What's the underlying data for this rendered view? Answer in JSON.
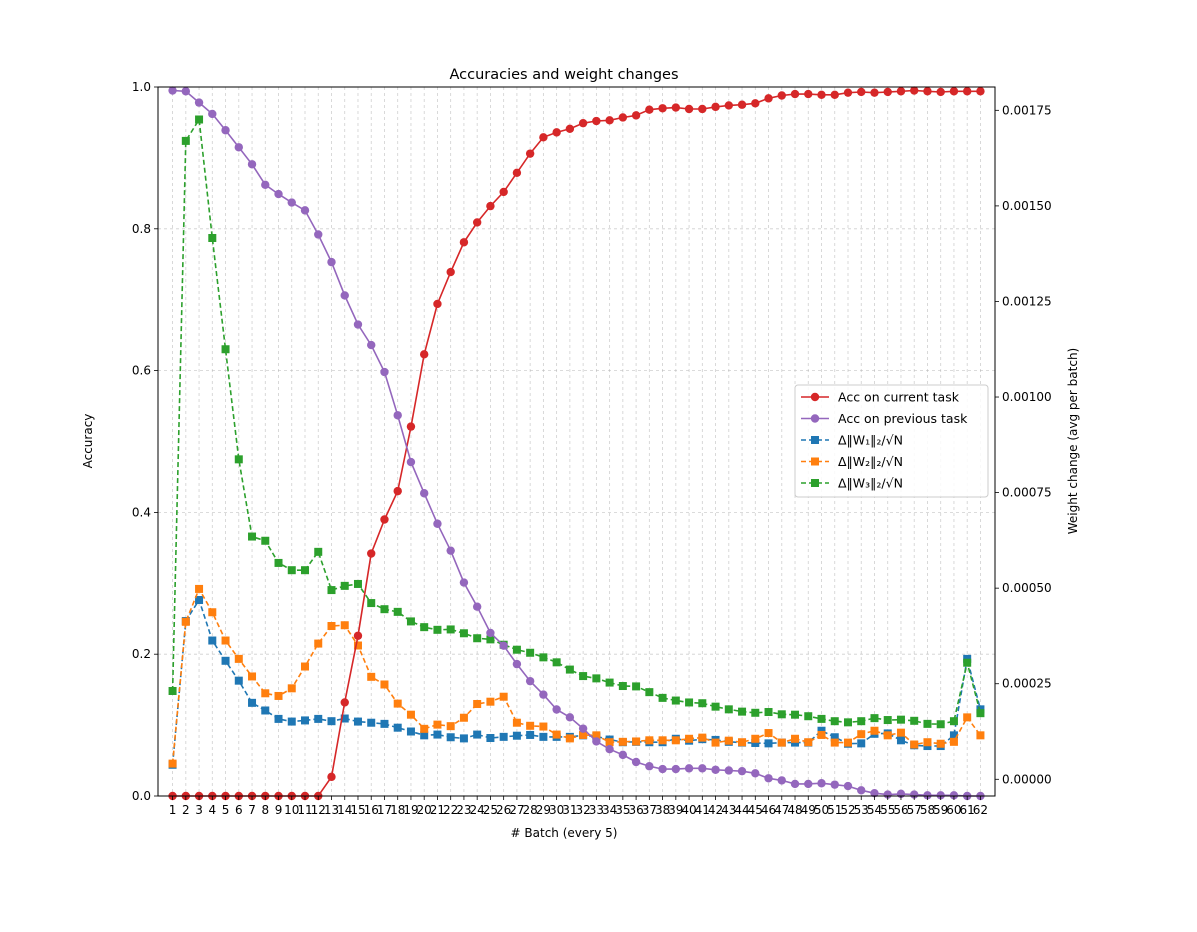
{
  "chart_data": {
    "type": "line",
    "title": "Accuracies and weight changes",
    "xlabel": "# Batch (every 5)",
    "ylabel": "Accuracy",
    "y2label": "Weight change (avg per batch)",
    "ylim": [
      0,
      1
    ],
    "y2lim": [
      -4.37e-05,
      0.001811
    ],
    "xlim": [
      -0.1,
      63.1
    ],
    "grid": true,
    "legend_position": "center-right",
    "x": [
      1,
      2,
      3,
      4,
      5,
      6,
      7,
      8,
      9,
      10,
      11,
      12,
      13,
      14,
      15,
      16,
      17,
      18,
      19,
      20,
      21,
      22,
      23,
      24,
      25,
      26,
      27,
      28,
      29,
      30,
      31,
      32,
      33,
      34,
      35,
      36,
      37,
      38,
      39,
      40,
      41,
      42,
      43,
      44,
      45,
      46,
      47,
      48,
      49,
      50,
      51,
      52,
      53,
      54,
      55,
      56,
      57,
      58,
      59,
      60,
      61,
      62
    ],
    "yticks": [
      0.0,
      0.2,
      0.4,
      0.6,
      0.8,
      1.0
    ],
    "ytick_labels": [
      "0.0",
      "0.2",
      "0.4",
      "0.6",
      "0.8",
      "1.0"
    ],
    "y2ticks": [
      0.0,
      0.00025,
      0.0005,
      0.00075,
      0.001,
      0.00125,
      0.0015,
      0.00175
    ],
    "y2tick_labels": [
      "0.00000",
      "0.00025",
      "0.00050",
      "0.00075",
      "0.00100",
      "0.00125",
      "0.00150",
      "0.00175"
    ],
    "series": [
      {
        "name": "Acc on current task",
        "axis": "left",
        "color": "#d62728",
        "marker": "circle",
        "dash": false,
        "values": [
          0,
          0,
          0,
          0,
          0,
          0,
          0,
          0,
          0,
          0,
          0,
          0,
          0.027,
          0.132,
          0.226,
          0.342,
          0.39,
          0.43,
          0.521,
          0.623,
          0.694,
          0.739,
          0.781,
          0.809,
          0.832,
          0.852,
          0.879,
          0.906,
          0.929,
          0.936,
          0.941,
          0.949,
          0.952,
          0.953,
          0.957,
          0.96,
          0.968,
          0.97,
          0.971,
          0.969,
          0.969,
          0.972,
          0.974,
          0.975,
          0.977,
          0.984,
          0.988,
          0.99,
          0.99,
          0.989,
          0.989,
          0.992,
          0.993,
          0.992,
          0.993,
          0.994,
          0.995,
          0.994,
          0.993,
          0.994,
          0.994,
          0.994
        ]
      },
      {
        "name": "Acc on previous task",
        "axis": "left",
        "color": "#9467bd",
        "marker": "circle",
        "dash": false,
        "values": [
          0.995,
          0.994,
          0.978,
          0.962,
          0.939,
          0.915,
          0.891,
          0.862,
          0.849,
          0.837,
          0.826,
          0.792,
          0.753,
          0.706,
          0.665,
          0.636,
          0.598,
          0.537,
          0.471,
          0.427,
          0.384,
          0.346,
          0.301,
          0.267,
          0.23,
          0.212,
          0.186,
          0.162,
          0.143,
          0.122,
          0.111,
          0.095,
          0.077,
          0.066,
          0.058,
          0.048,
          0.042,
          0.038,
          0.038,
          0.039,
          0.039,
          0.037,
          0.036,
          0.035,
          0.032,
          0.025,
          0.022,
          0.017,
          0.017,
          0.018,
          0.016,
          0.014,
          0.008,
          0.004,
          0.002,
          0.003,
          0.002,
          0.001,
          0.001,
          0.001,
          0.0,
          0.0
        ]
      },
      {
        "name": "Δ‖W₁‖₂/√N",
        "axis": "right",
        "color": "#1f77b4",
        "marker": "square",
        "dash": true,
        "values": [
          3.8e-05,
          0.000414,
          0.000469,
          0.000363,
          0.00031,
          0.000258,
          0.0002,
          0.00018,
          0.000158,
          0.000151,
          0.000154,
          0.000158,
          0.000152,
          0.000159,
          0.000151,
          0.000148,
          0.000145,
          0.000135,
          0.000125,
          0.000115,
          0.000117,
          0.00011,
          0.000107,
          0.000117,
          0.000108,
          0.000111,
          0.000114,
          0.000116,
          0.000111,
          0.000111,
          0.000111,
          0.000115,
          0.000112,
          0.000104,
          9.7e-05,
          9.8e-05,
          9.7e-05,
          9.7e-05,
          0.000106,
          0.000101,
          0.000105,
          0.000103,
          9.8e-05,
          9.6e-05,
          9.5e-05,
          9.4e-05,
          9.6e-05,
          9.6e-05,
          9.6e-05,
          0.000127,
          0.00011,
          9.3e-05,
          9.4e-05,
          0.000119,
          0.00012,
          0.000102,
          8.9e-05,
          8.7e-05,
          8.7e-05,
          0.000115,
          0.000315,
          0.000183
        ]
      },
      {
        "name": "Δ‖W₂‖₂/√N",
        "axis": "right",
        "color": "#ff7f0e",
        "marker": "square",
        "dash": true,
        "values": [
          4.1e-05,
          0.000412,
          0.000498,
          0.000437,
          0.000363,
          0.000315,
          0.000269,
          0.000225,
          0.000218,
          0.000238,
          0.000295,
          0.000355,
          0.000401,
          0.000403,
          0.00035,
          0.000268,
          0.000248,
          0.000198,
          0.000169,
          0.000132,
          0.000143,
          0.000139,
          0.000161,
          0.000197,
          0.000203,
          0.000216,
          0.000148,
          0.00014,
          0.000138,
          0.000117,
          0.000107,
          0.000116,
          0.000115,
          9.7e-05,
          9.8e-05,
          9.9e-05,
          0.000102,
          0.000102,
          0.000102,
          0.000106,
          0.000109,
          9.6e-05,
          0.000101,
          9.7e-05,
          0.000106,
          0.000121,
          9.6e-05,
          0.000106,
          9.7e-05,
          0.000116,
          9.6e-05,
          9.6e-05,
          0.000118,
          0.000127,
          0.000115,
          0.000122,
          9.1e-05,
          9.7e-05,
          9.3e-05,
          9.8e-05,
          0.000162,
          0.000115
        ]
      },
      {
        "name": "Δ‖W₃‖₂/√N",
        "axis": "right",
        "color": "#2ca02c",
        "marker": "square",
        "dash": true,
        "values": [
          0.000231,
          0.00167,
          0.001726,
          0.001416,
          0.001125,
          0.000837,
          0.000635,
          0.000624,
          0.000566,
          0.000547,
          0.000547,
          0.000595,
          0.000495,
          0.000506,
          0.000511,
          0.000461,
          0.000445,
          0.000438,
          0.000413,
          0.000398,
          0.000391,
          0.000392,
          0.000382,
          0.000369,
          0.000366,
          0.000352,
          0.000339,
          0.000331,
          0.000319,
          0.000306,
          0.000287,
          0.00027,
          0.000264,
          0.000253,
          0.000244,
          0.000243,
          0.000228,
          0.000213,
          0.000206,
          0.000201,
          0.000199,
          0.00019,
          0.000183,
          0.000177,
          0.000174,
          0.000176,
          0.00017,
          0.000169,
          0.000165,
          0.000158,
          0.000152,
          0.000149,
          0.000152,
          0.00016,
          0.000155,
          0.000156,
          0.000153,
          0.000145,
          0.000144,
          0.000152,
          0.000305,
          0.000173
        ]
      }
    ]
  }
}
